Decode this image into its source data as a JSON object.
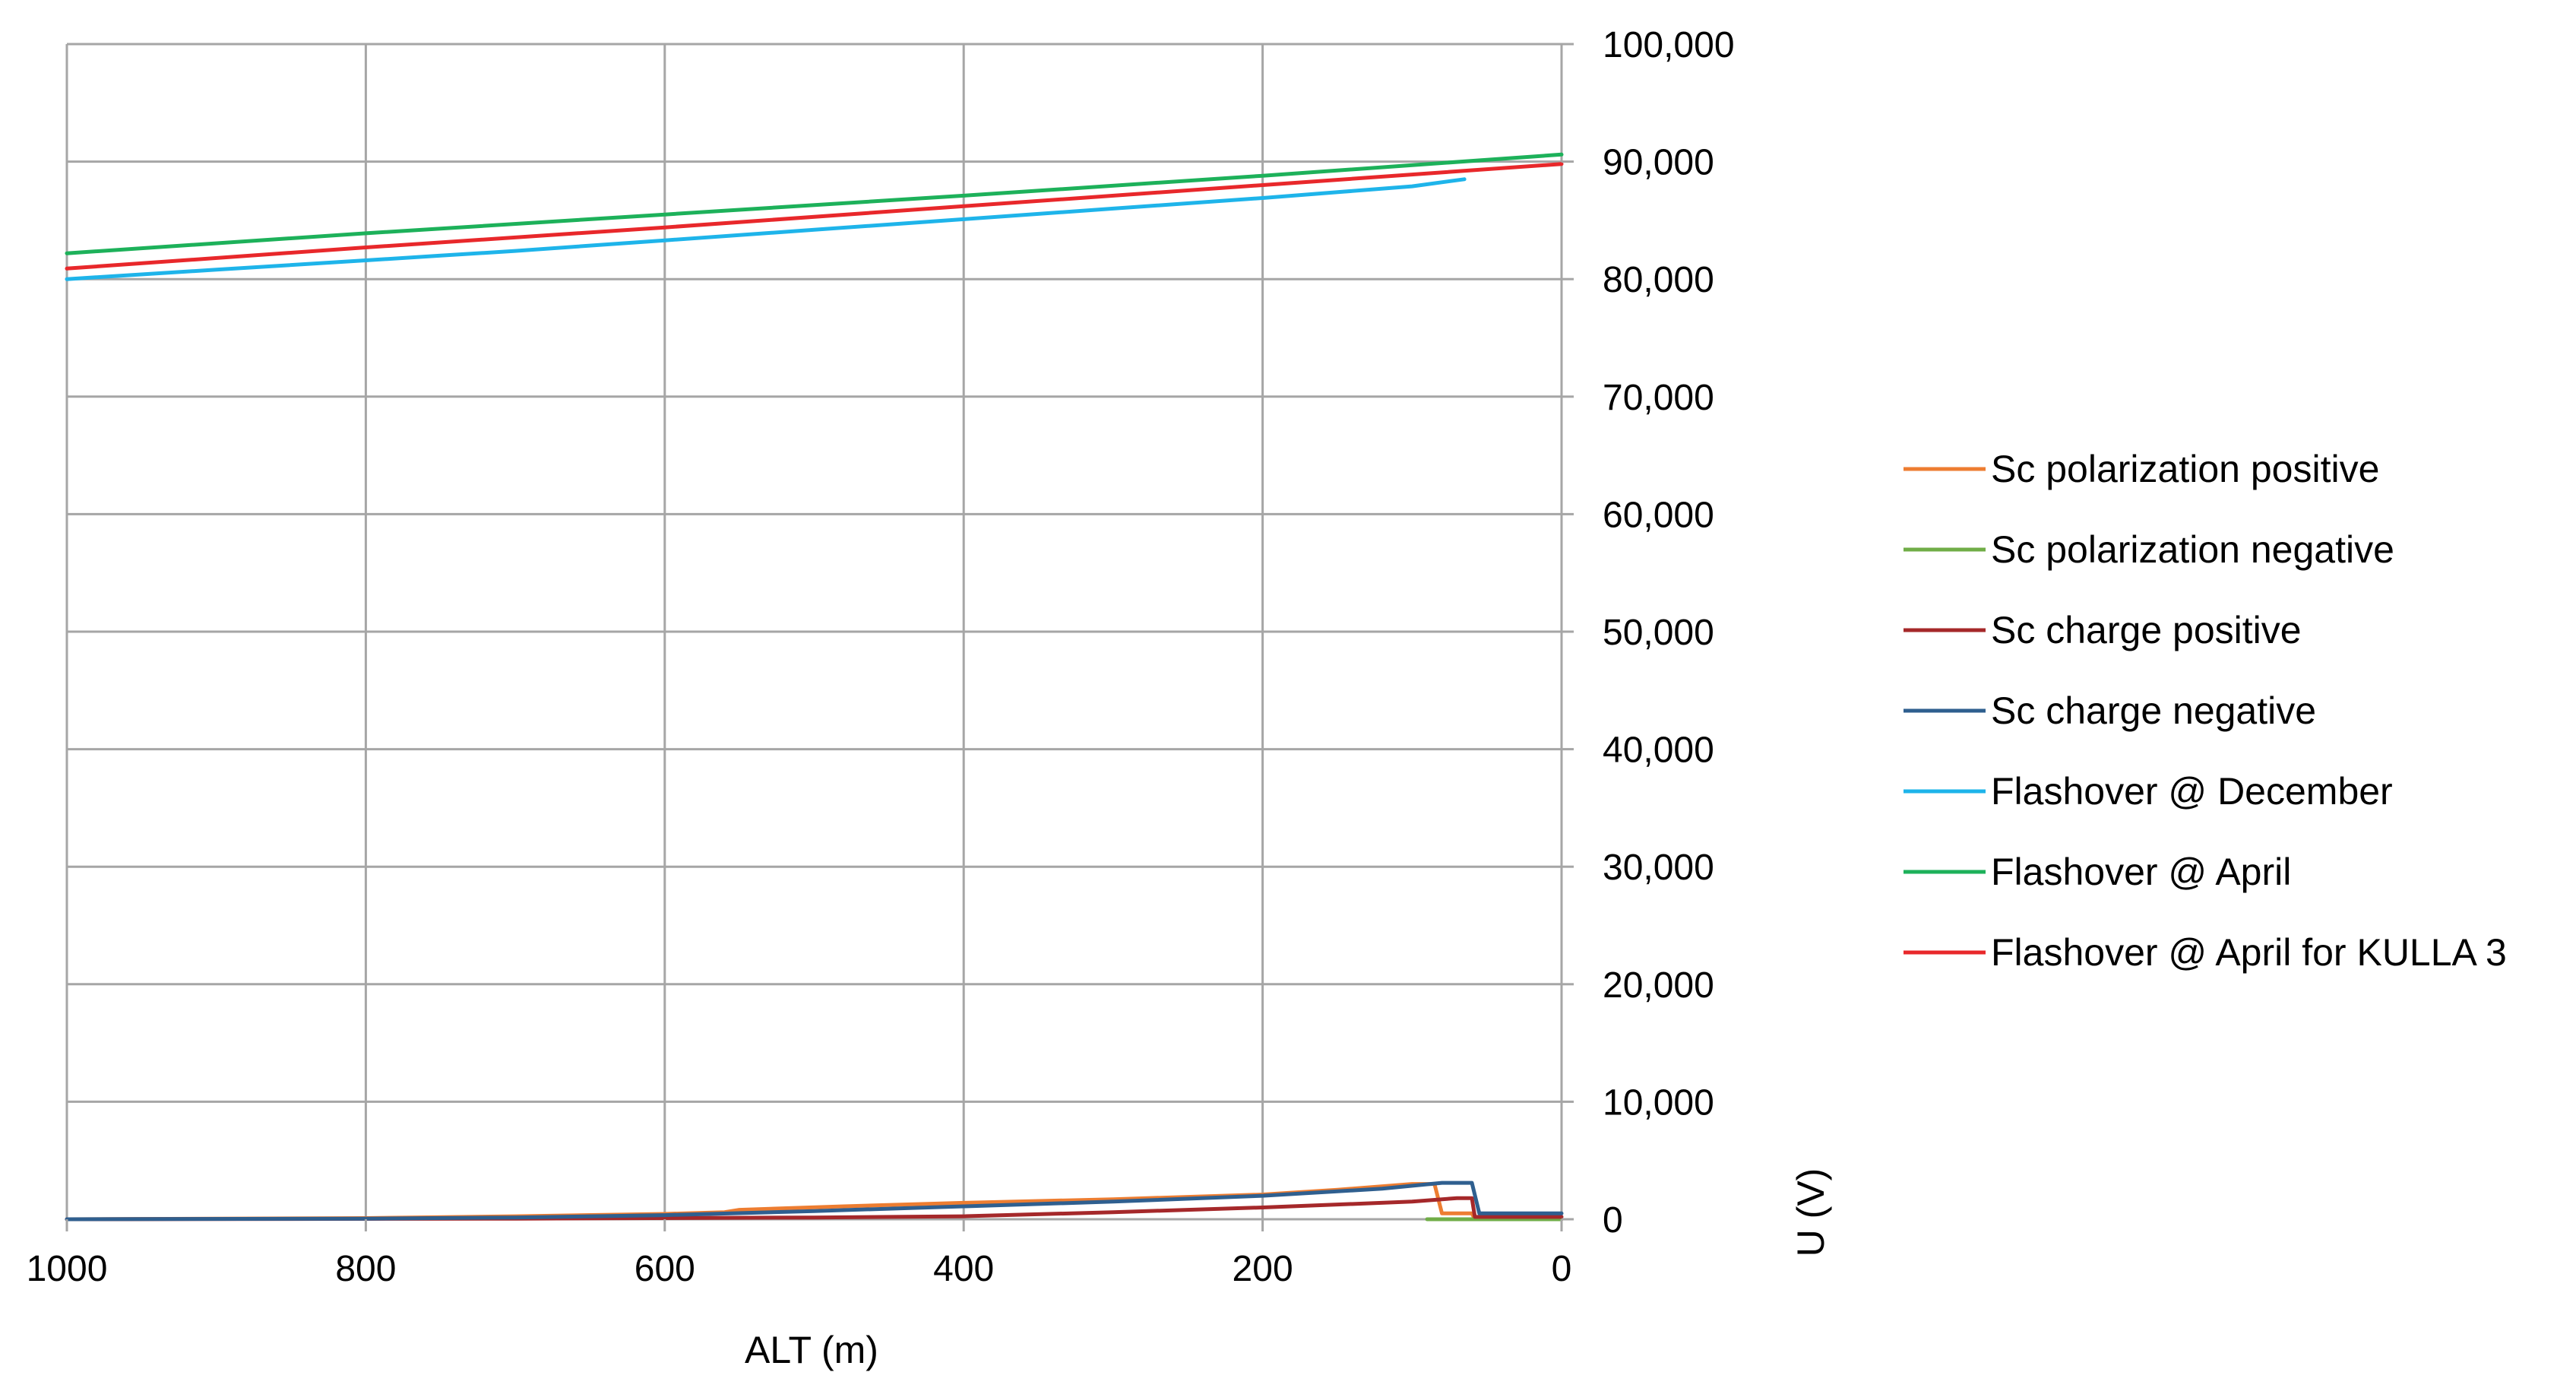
{
  "chart_data": {
    "type": "line",
    "title": "",
    "xlabel": "ALT (m)",
    "ylabel": "U (V)",
    "xlim": [
      1000,
      0
    ],
    "x_reversed": true,
    "ylim": [
      0,
      100000
    ],
    "y_axis_side": "right",
    "grid": true,
    "legend_position": "right",
    "x_ticks": [
      "1000",
      "800",
      "600",
      "400",
      "200",
      "0"
    ],
    "y_ticks": [
      "0",
      "10,000",
      "20,000",
      "30,000",
      "40,000",
      "50,000",
      "60,000",
      "70,000",
      "80,000",
      "90,000",
      "100,000"
    ],
    "series": [
      {
        "name": "Sc polarization positive",
        "color": "#ED7D31",
        "points": [
          [
            1000,
            0
          ],
          [
            800,
            100
          ],
          [
            700,
            250
          ],
          [
            600,
            450
          ],
          [
            560,
            600
          ],
          [
            550,
            800
          ],
          [
            480,
            1100
          ],
          [
            400,
            1400
          ],
          [
            300,
            1700
          ],
          [
            200,
            2100
          ],
          [
            150,
            2500
          ],
          [
            100,
            3000
          ],
          [
            85,
            3000
          ],
          [
            80,
            500
          ],
          [
            60,
            500
          ],
          [
            58,
            0
          ],
          [
            0,
            0
          ]
        ]
      },
      {
        "name": "Sc polarization negative",
        "color": "#70AD47",
        "points": [
          [
            90,
            0
          ],
          [
            0,
            0
          ]
        ]
      },
      {
        "name": "Sc charge positive",
        "color": "#A5282A",
        "points": [
          [
            1000,
            0
          ],
          [
            700,
            50
          ],
          [
            500,
            150
          ],
          [
            400,
            250
          ],
          [
            300,
            600
          ],
          [
            200,
            1000
          ],
          [
            100,
            1500
          ],
          [
            70,
            1800
          ],
          [
            60,
            1800
          ],
          [
            58,
            200
          ],
          [
            0,
            200
          ]
        ]
      },
      {
        "name": "Sc charge negative",
        "color": "#2F5F8F",
        "points": [
          [
            1000,
            0
          ],
          [
            800,
            50
          ],
          [
            700,
            150
          ],
          [
            600,
            350
          ],
          [
            500,
            700
          ],
          [
            400,
            1100
          ],
          [
            300,
            1500
          ],
          [
            200,
            2000
          ],
          [
            120,
            2600
          ],
          [
            80,
            3100
          ],
          [
            60,
            3100
          ],
          [
            55,
            500
          ],
          [
            0,
            500
          ]
        ]
      },
      {
        "name": "Flashover @ December",
        "color": "#1EB4EA",
        "points": [
          [
            1000,
            80000
          ],
          [
            900,
            80800
          ],
          [
            800,
            81600
          ],
          [
            750,
            82000
          ],
          [
            700,
            82400
          ],
          [
            600,
            83300
          ],
          [
            500,
            84200
          ],
          [
            400,
            85100
          ],
          [
            300,
            86000
          ],
          [
            200,
            86900
          ],
          [
            100,
            87900
          ],
          [
            65,
            88500
          ]
        ]
      },
      {
        "name": "Flashover @ April",
        "color": "#1DB15A",
        "points": [
          [
            1000,
            82200
          ],
          [
            800,
            83900
          ],
          [
            600,
            85500
          ],
          [
            400,
            87100
          ],
          [
            200,
            88800
          ],
          [
            0,
            90600
          ]
        ]
      },
      {
        "name": "Flashover @ April for KULLA 3",
        "color": "#E8282B",
        "points": [
          [
            1000,
            80900
          ],
          [
            800,
            82700
          ],
          [
            600,
            84400
          ],
          [
            400,
            86200
          ],
          [
            200,
            88000
          ],
          [
            0,
            89800
          ]
        ]
      }
    ]
  }
}
